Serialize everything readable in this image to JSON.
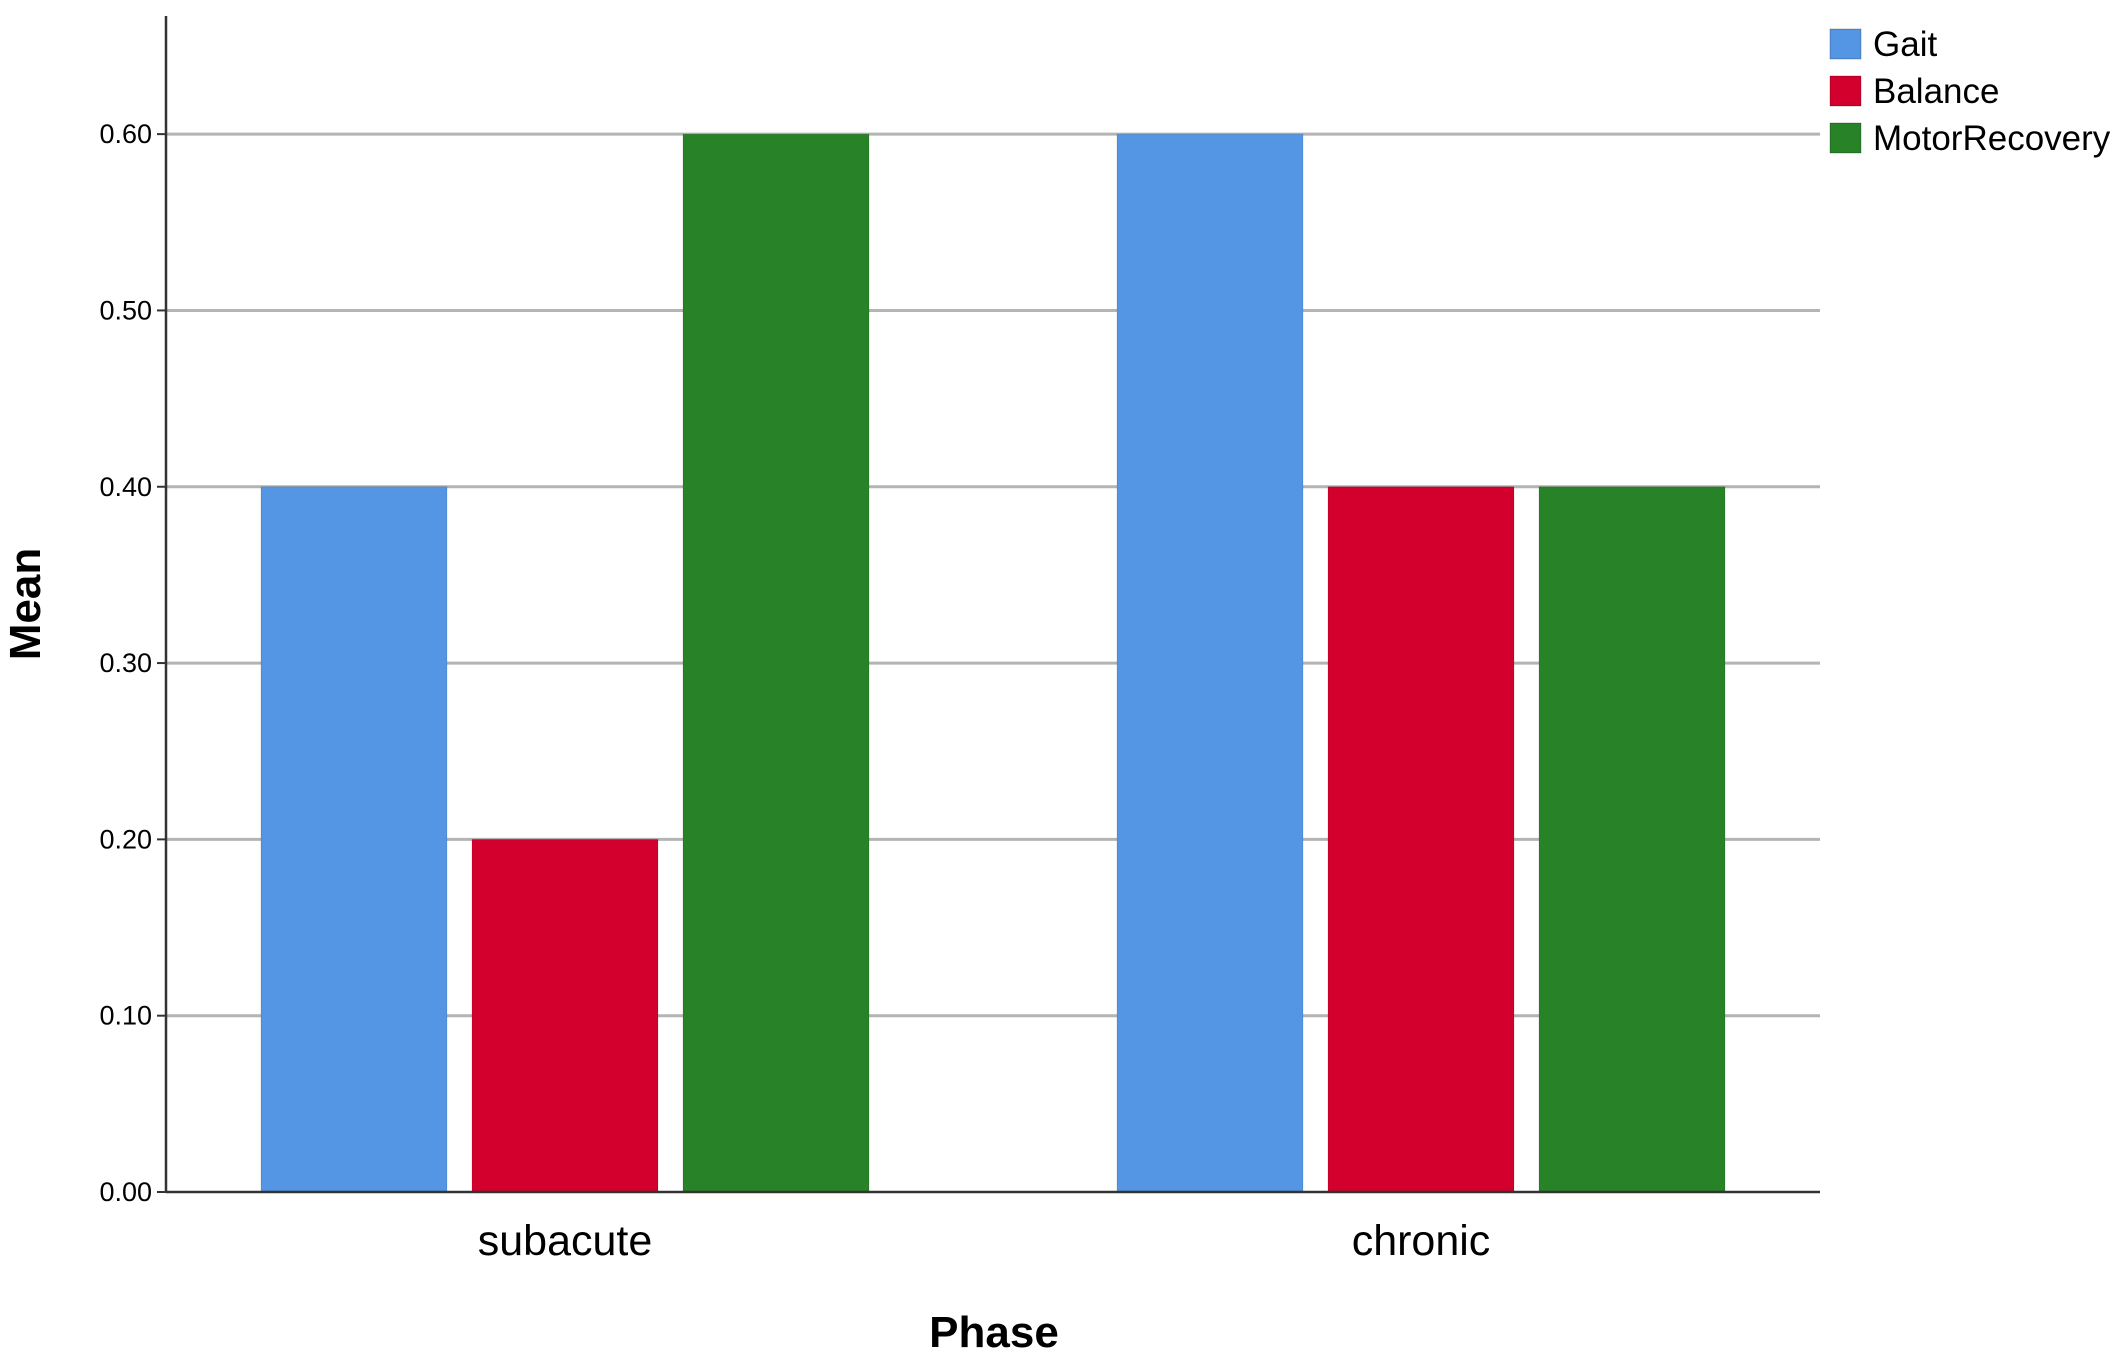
{
  "chart_data": {
    "type": "bar",
    "title": "",
    "xlabel": "Phase",
    "ylabel": "Mean",
    "categories": [
      "subacute",
      "chronic"
    ],
    "series": [
      {
        "name": "Gait",
        "color": "#5596e4",
        "values": [
          0.4,
          0.6
        ]
      },
      {
        "name": "Balance",
        "color": "#d3002d",
        "values": [
          0.2,
          0.4
        ]
      },
      {
        "name": "MotorRecovery",
        "color": "#288228",
        "values": [
          0.6,
          0.4
        ]
      }
    ],
    "ylim": [
      0,
      0.667
    ],
    "yticks": [
      "0.00",
      "0.10",
      "0.20",
      "0.30",
      "0.40",
      "0.50",
      "0.60"
    ],
    "grid": true,
    "legend_position": "top-right"
  }
}
